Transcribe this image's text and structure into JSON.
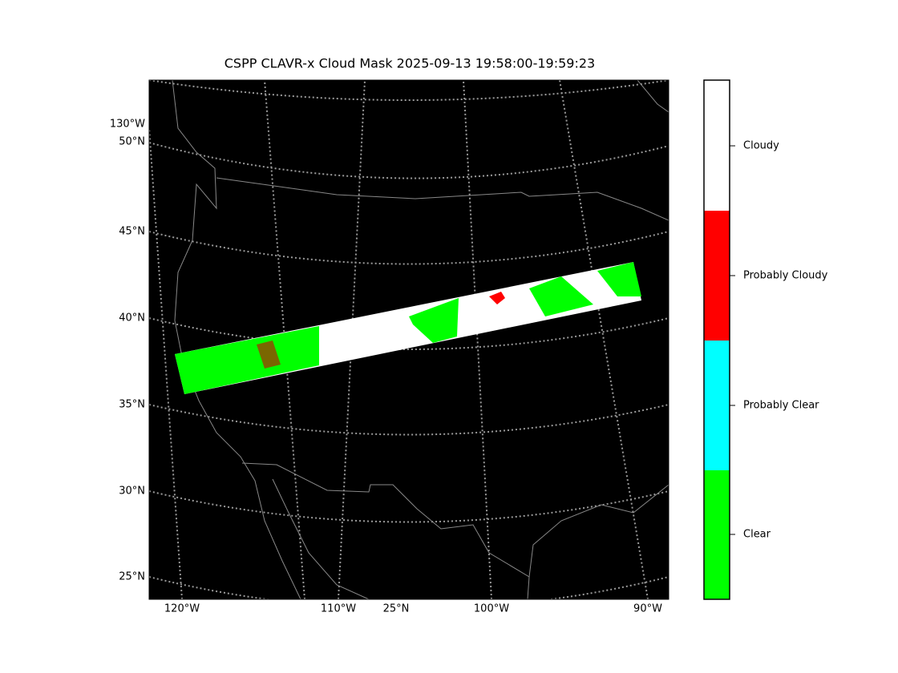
{
  "title": "CSPP CLAVR-x Cloud Mask 2025-09-13 19:58:00-19:59:23",
  "map": {
    "lat_labels": [
      "130°W",
      "50°N",
      "45°N",
      "40°N",
      "35°N",
      "30°N",
      "25°N"
    ],
    "lon_labels": [
      "120°W",
      "110°W",
      "25°N",
      "100°W",
      "90°W"
    ]
  },
  "colorbar": {
    "labels": [
      "Cloudy",
      "Probably Cloudy",
      "Probably Clear",
      "Clear"
    ]
  }
}
